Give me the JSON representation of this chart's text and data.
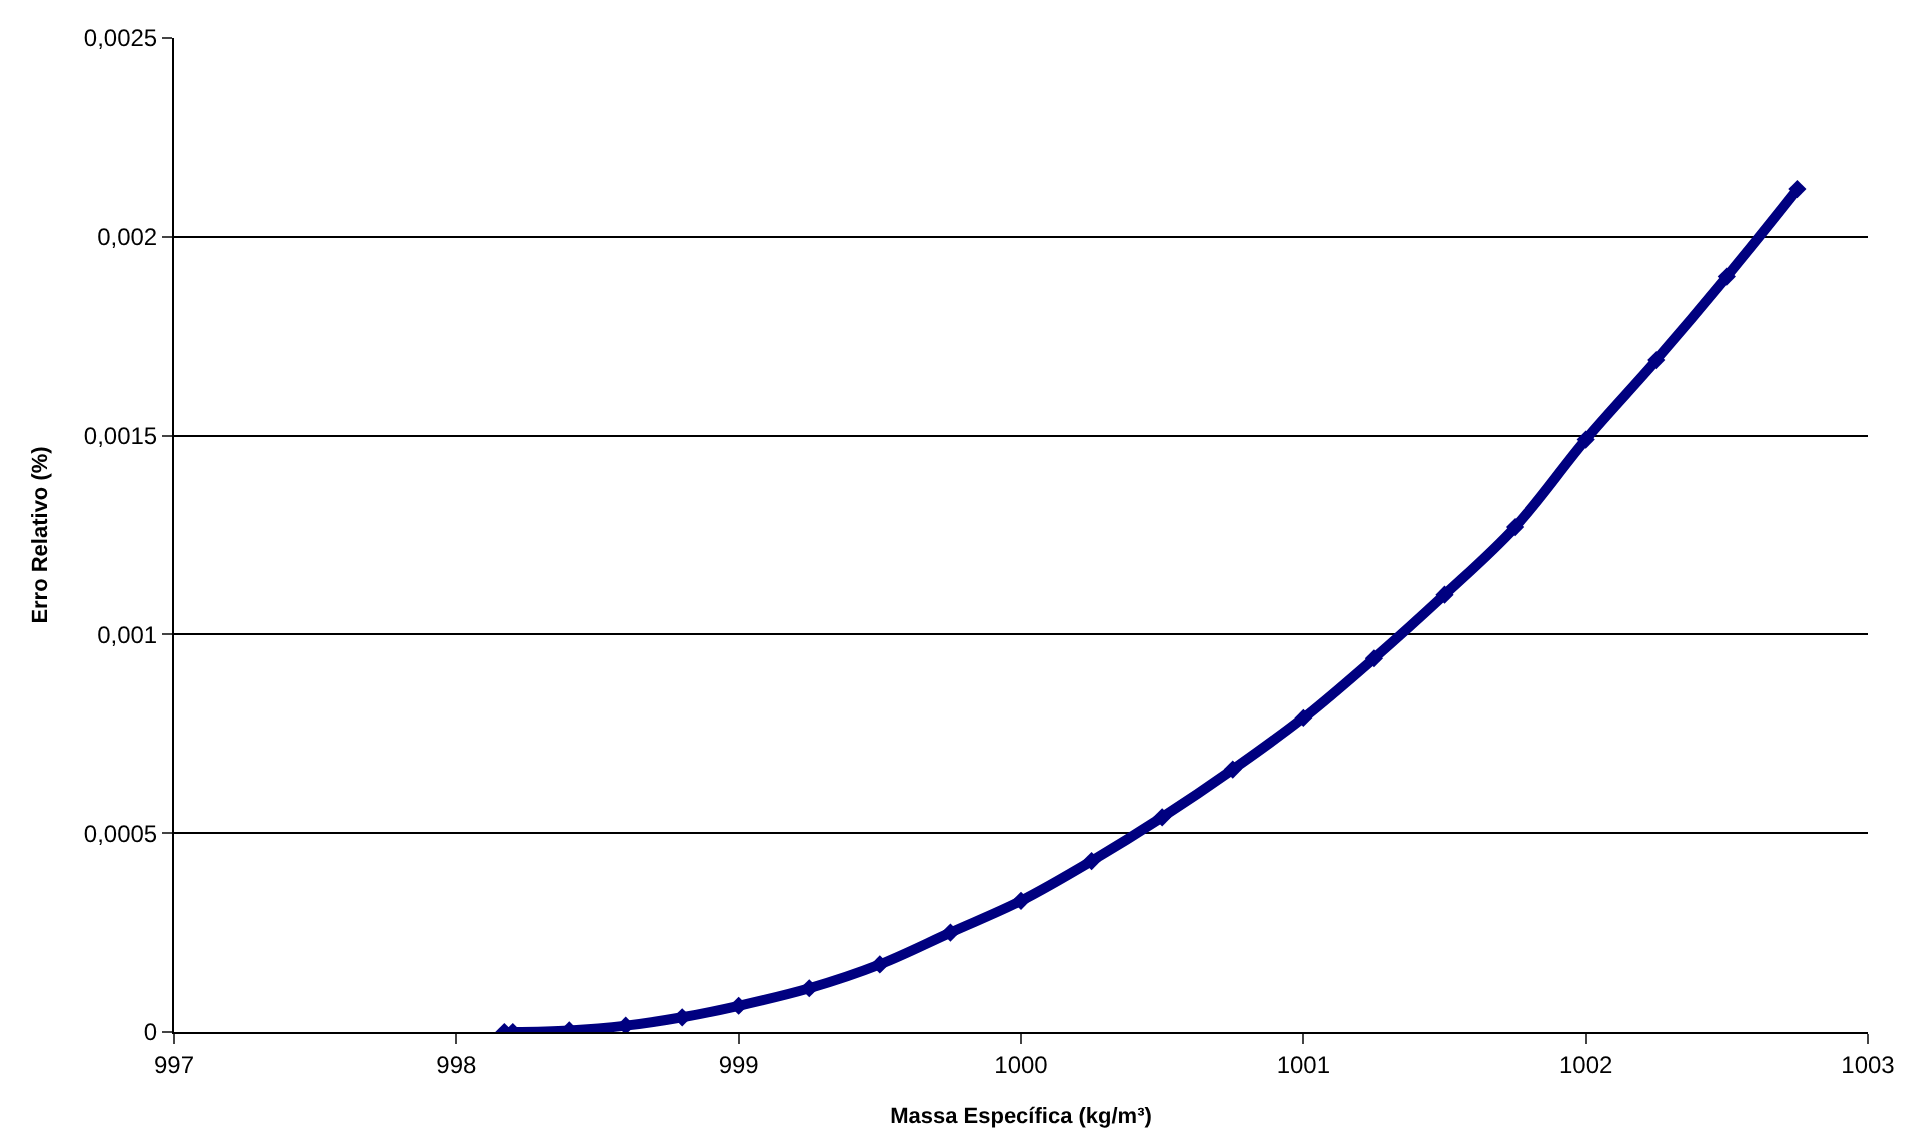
{
  "chart_data": {
    "type": "line",
    "xlabel": "Massa Específica (kg/m³)",
    "ylabel": "Erro Relativo (%)",
    "series": [
      {
        "color": "#000080",
        "x": [
          998.17,
          998.2,
          998.4,
          998.6,
          998.8,
          999.0,
          999.25,
          999.5,
          999.75,
          1000.0,
          1000.25,
          1000.5,
          1000.75,
          1001.0,
          1001.25,
          1001.5,
          1001.75,
          1002.0,
          1002.25,
          1002.5,
          1002.75
        ],
        "values": [
          0,
          0,
          4e-06,
          1.6e-05,
          3.7e-05,
          6.6e-05,
          0.00011,
          0.00017,
          0.00025,
          0.00033,
          0.00043,
          0.00054,
          0.00066,
          0.00079,
          0.00094,
          0.0011,
          0.00127,
          0.00149,
          0.00169,
          0.0019,
          0.00212
        ]
      }
    ],
    "xlim": [
      997,
      1003
    ],
    "xticks": [
      997,
      998,
      999,
      1000,
      1001,
      1002,
      1003
    ],
    "ylim": [
      0,
      0.0025
    ],
    "yticks": [
      0,
      {
        "value": 0.0005,
        "label": "0,0005"
      },
      {
        "value": 0.001,
        "label": "0,001"
      },
      {
        "value": 0.0015,
        "label": "0,0015"
      },
      {
        "value": 0.002,
        "label": "0,002"
      },
      {
        "value": 0.0025,
        "label": "0,0025"
      }
    ],
    "grid": "y",
    "legend": false,
    "marker": "diamond",
    "line_style": "solid"
  }
}
